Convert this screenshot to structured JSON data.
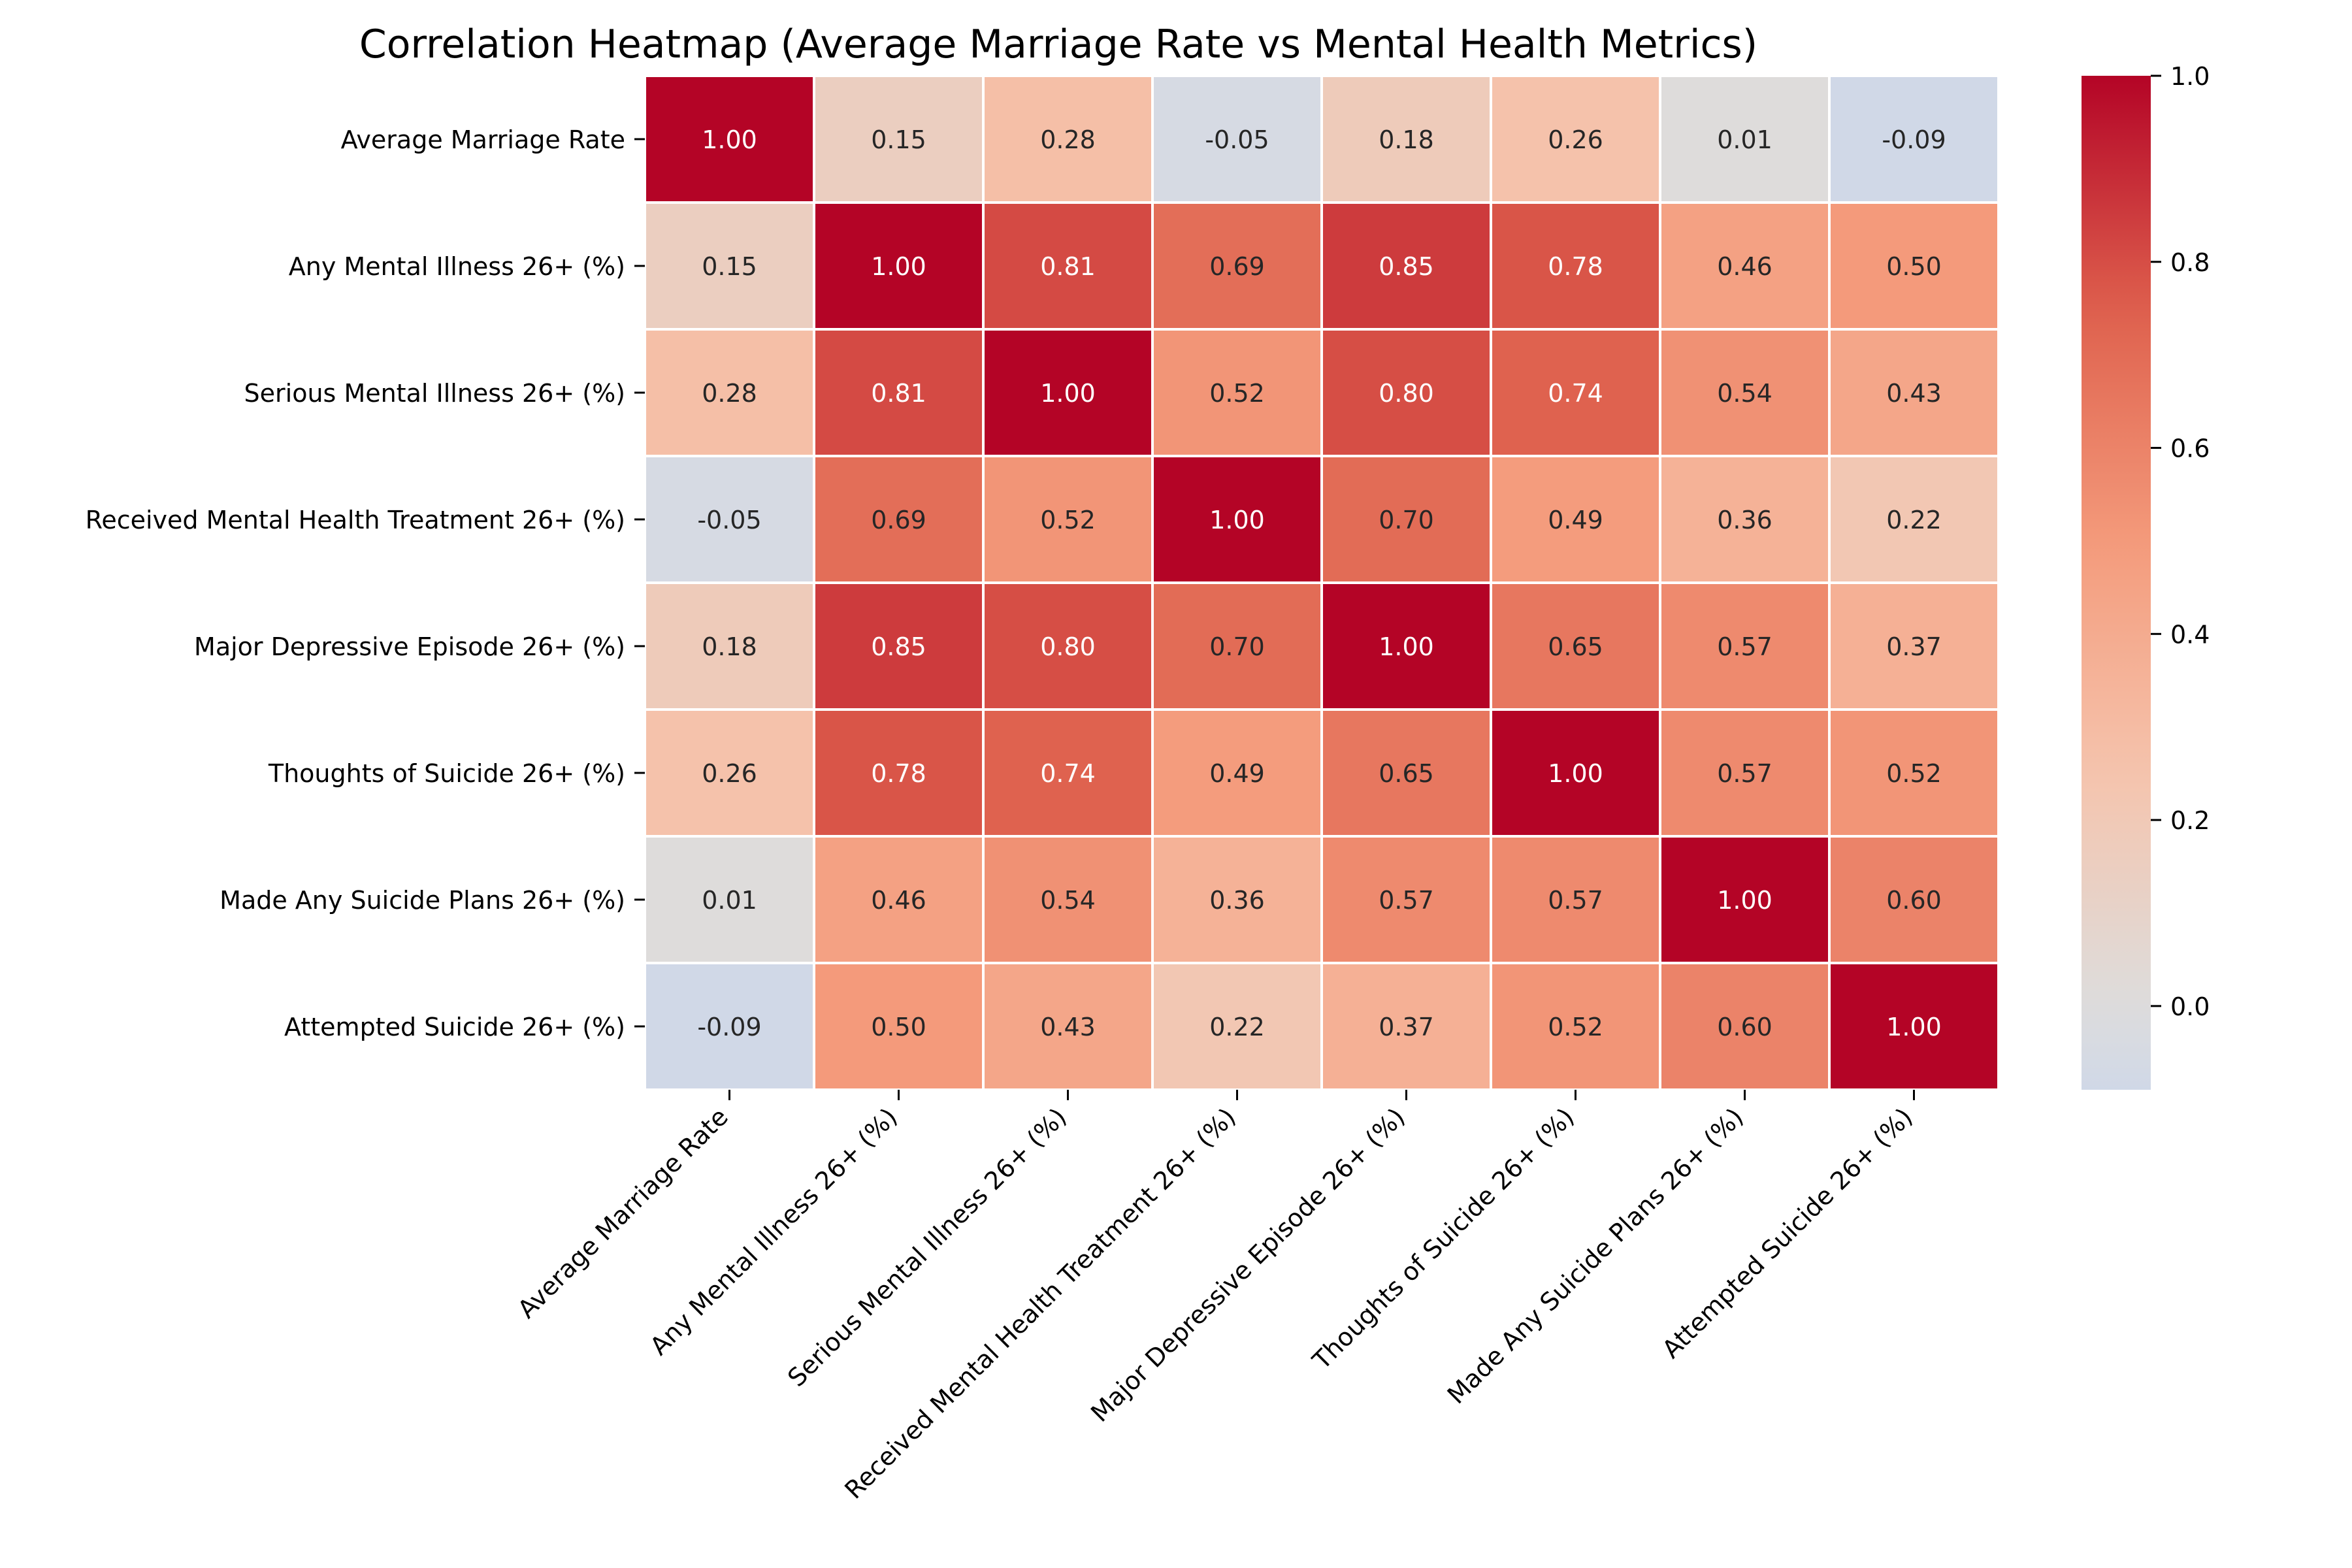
{
  "chart_data": {
    "type": "heatmap",
    "title": "Correlation Heatmap (Average Marriage Rate vs Mental Health Metrics)",
    "labels": [
      "Average Marriage Rate",
      "Any Mental Illness 26+ (%)",
      "Serious Mental Illness 26+ (%)",
      "Received Mental Health Treatment 26+ (%)",
      "Major Depressive Episode 26+ (%)",
      "Thoughts of Suicide 26+ (%)",
      "Made Any Suicide Plans 26+ (%)",
      "Attempted Suicide 26+ (%)"
    ],
    "values": [
      [
        1.0,
        0.15,
        0.28,
        -0.05,
        0.18,
        0.26,
        0.01,
        -0.09
      ],
      [
        0.15,
        1.0,
        0.81,
        0.69,
        0.85,
        0.78,
        0.46,
        0.5
      ],
      [
        0.28,
        0.81,
        1.0,
        0.52,
        0.8,
        0.74,
        0.54,
        0.43
      ],
      [
        -0.05,
        0.69,
        0.52,
        1.0,
        0.7,
        0.49,
        0.36,
        0.22
      ],
      [
        0.18,
        0.85,
        0.8,
        0.7,
        1.0,
        0.65,
        0.57,
        0.37
      ],
      [
        0.26,
        0.78,
        0.74,
        0.49,
        0.65,
        1.0,
        0.57,
        0.52
      ],
      [
        0.01,
        0.46,
        0.54,
        0.36,
        0.57,
        0.57,
        1.0,
        0.6
      ],
      [
        -0.09,
        0.5,
        0.43,
        0.22,
        0.37,
        0.52,
        0.6,
        1.0
      ]
    ],
    "value_format": "0.00",
    "colormap": "coolwarm",
    "color_range": [
      -0.09,
      1.0
    ],
    "colorbar_ticks": [
      "0.0",
      "0.2",
      "0.4",
      "0.6",
      "0.8",
      "1.0"
    ],
    "colorbar_tick_values": [
      0.0,
      0.2,
      0.4,
      0.6,
      0.8,
      1.0
    ],
    "grid": false,
    "colorbar_position": "right"
  }
}
